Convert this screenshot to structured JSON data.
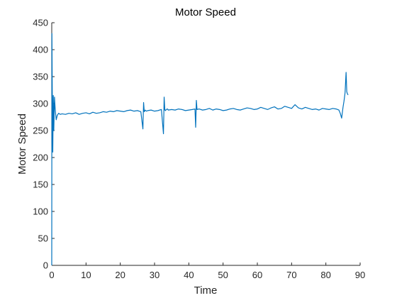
{
  "chart_data": {
    "type": "line",
    "title": "Motor Speed",
    "xlabel": "Time",
    "ylabel": "Motor Speed",
    "xlim": [
      0,
      90
    ],
    "ylim": [
      0,
      450
    ],
    "xticks": [
      0,
      10,
      20,
      30,
      40,
      50,
      60,
      70,
      80,
      90
    ],
    "yticks": [
      0,
      50,
      100,
      150,
      200,
      250,
      300,
      350,
      400,
      450
    ],
    "grid": false,
    "legend": "none",
    "line_color": "#0072BD",
    "axis_color": "#262626",
    "series": [
      {
        "x": [
          0,
          0.05,
          0.15,
          0.3,
          0.45,
          0.6,
          0.8,
          1.0,
          1.3,
          1.6,
          2.0,
          2.5,
          3,
          4,
          5,
          6,
          7,
          8,
          9,
          10,
          11,
          12,
          13,
          14,
          15,
          16,
          17,
          18,
          19,
          20,
          21,
          22,
          23,
          24,
          25,
          26,
          26.6,
          26.8,
          27.0,
          27.3,
          27.6,
          28,
          29,
          30,
          31,
          32,
          32.6,
          32.8,
          33.0,
          33.2,
          33.4,
          33.8,
          34,
          35,
          36,
          37,
          38,
          39,
          40,
          41,
          41.8,
          42.0,
          42.2,
          42.4,
          43,
          44,
          45,
          46,
          47,
          48,
          49,
          50,
          51,
          52,
          53,
          54,
          55,
          56,
          57,
          58,
          59,
          60,
          61,
          62,
          63,
          64,
          65,
          66,
          67,
          68,
          69,
          70,
          71,
          72,
          73,
          74,
          75,
          76,
          77,
          78,
          79,
          80,
          81,
          82,
          83,
          83.8,
          84.2,
          84.6,
          85.0,
          85.3,
          85.6,
          85.9,
          86.1,
          86.3,
          86.5
        ],
        "y": [
          0,
          430,
          325,
          210,
          315,
          250,
          312,
          290,
          270,
          278,
          282,
          280,
          281,
          280,
          282,
          281,
          283,
          280,
          282,
          283,
          281,
          284,
          282,
          283,
          285,
          284,
          286,
          285,
          287,
          286,
          285,
          287,
          288,
          286,
          287,
          285,
          253,
          302,
          285,
          288,
          286,
          287,
          288,
          286,
          287,
          289,
          244,
          312,
          288,
          287,
          289,
          290,
          288,
          289,
          288,
          290,
          289,
          287,
          288,
          289,
          290,
          256,
          306,
          289,
          290,
          288,
          289,
          291,
          288,
          290,
          289,
          287,
          288,
          290,
          291,
          289,
          288,
          290,
          292,
          291,
          289,
          290,
          293,
          291,
          289,
          292,
          294,
          290,
          291,
          295,
          293,
          291,
          298,
          292,
          290,
          293,
          291,
          289,
          290,
          288,
          291,
          290,
          289,
          291,
          290,
          288,
          282,
          273,
          293,
          305,
          320,
          358,
          322,
          318,
          316
        ]
      }
    ]
  }
}
